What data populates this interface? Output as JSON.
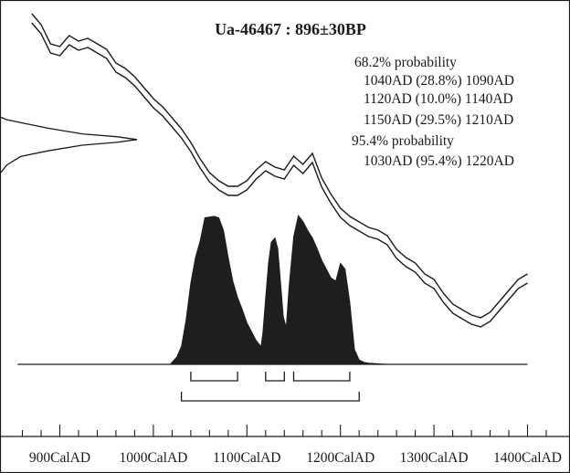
{
  "chart_data": {
    "type": "area",
    "title": "Ua-46467 : 896±30BP",
    "annotations": {
      "sigma1_heading": "68.2% probability",
      "sigma1_ranges": [
        "1040AD (28.8%) 1090AD",
        "1120AD (10.0%) 1140AD",
        "1150AD (29.5%) 1210AD"
      ],
      "sigma2_heading": "95.4% probability",
      "sigma2_ranges": [
        "1030AD (95.4%) 1220AD"
      ]
    },
    "x_ticks": [
      "900CalAD",
      "1000CalAD",
      "1100CalAD",
      "1200CalAD",
      "1300CalAD",
      "1400CalAD"
    ],
    "x_tick_values": [
      900,
      1000,
      1100,
      1200,
      1300,
      1400
    ],
    "xlim": [
      850,
      1420
    ],
    "minor_tick_step": 20,
    "calibrated_distribution": {
      "x": [
        1018,
        1025,
        1030,
        1035,
        1040,
        1045,
        1050,
        1055,
        1060,
        1065,
        1070,
        1075,
        1080,
        1085,
        1090,
        1095,
        1100,
        1105,
        1110,
        1115,
        1117,
        1120,
        1123,
        1126,
        1130,
        1133,
        1136,
        1139,
        1142,
        1145,
        1150,
        1155,
        1160,
        1165,
        1170,
        1175,
        1180,
        1185,
        1190,
        1195,
        1200,
        1205,
        1210,
        1215,
        1220,
        1225,
        1230,
        1240,
        1250
      ],
      "y": [
        0,
        0.05,
        0.12,
        0.3,
        0.55,
        0.72,
        0.83,
        0.985,
        0.99,
        0.995,
        0.985,
        0.9,
        0.72,
        0.56,
        0.45,
        0.37,
        0.28,
        0.22,
        0.16,
        0.12,
        0.21,
        0.45,
        0.68,
        0.82,
        0.85,
        0.78,
        0.55,
        0.32,
        0.25,
        0.52,
        0.86,
        1.0,
        0.96,
        0.9,
        0.85,
        0.78,
        0.7,
        0.64,
        0.58,
        0.56,
        0.68,
        0.64,
        0.42,
        0.1,
        0.03,
        0.015,
        0.008,
        0.004,
        0
      ]
    },
    "calibration_curve": {
      "x": [
        870,
        880,
        890,
        900,
        910,
        920,
        930,
        940,
        950,
        960,
        970,
        980,
        990,
        1000,
        1010,
        1020,
        1030,
        1040,
        1050,
        1060,
        1070,
        1080,
        1090,
        1100,
        1110,
        1120,
        1130,
        1140,
        1150,
        1160,
        1170,
        1180,
        1190,
        1200,
        1210,
        1220,
        1230,
        1240,
        1250,
        1260,
        1270,
        1280,
        1290,
        1300,
        1310,
        1320,
        1330,
        1340,
        1350,
        1360,
        1370,
        1380,
        1390,
        1400
      ],
      "y": [
        0,
        0.04,
        0.11,
        0.12,
        0.08,
        0.1,
        0.09,
        0.11,
        0.13,
        0.18,
        0.2,
        0.23,
        0.27,
        0.31,
        0.34,
        0.38,
        0.42,
        0.47,
        0.53,
        0.58,
        0.61,
        0.63,
        0.63,
        0.61,
        0.57,
        0.54,
        0.56,
        0.57,
        0.52,
        0.55,
        0.51,
        0.6,
        0.66,
        0.71,
        0.74,
        0.76,
        0.78,
        0.79,
        0.81,
        0.86,
        0.89,
        0.91,
        0.95,
        0.97,
        1.02,
        1.06,
        1.08,
        1.1,
        1.11,
        1.09,
        1.05,
        1.01,
        0.97,
        0.95
      ]
    },
    "radiocarbon_distribution": {
      "y": [
        0,
        0.05,
        0.15,
        0.35,
        0.6,
        0.85,
        1.0,
        0.85,
        0.6,
        0.35,
        0.15,
        0.05,
        0
      ],
      "x": [
        0,
        0.05,
        0.1,
        0.2,
        0.3,
        0.35,
        0.4,
        0.45,
        0.5,
        0.6,
        0.7,
        0.85,
        1.0
      ]
    },
    "sigma1_bars": [
      [
        1040,
        1090
      ],
      [
        1120,
        1140
      ],
      [
        1150,
        1210
      ]
    ],
    "sigma2_bars": [
      [
        1030,
        1220
      ]
    ],
    "grid": false
  }
}
